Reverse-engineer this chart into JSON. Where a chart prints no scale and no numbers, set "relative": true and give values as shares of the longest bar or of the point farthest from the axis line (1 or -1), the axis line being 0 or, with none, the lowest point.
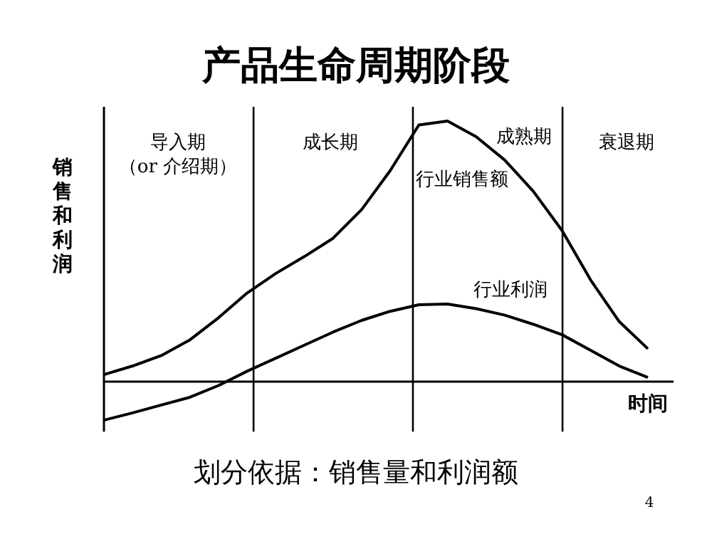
{
  "chart_data": {
    "type": "line",
    "title": "产品生命周期阶段",
    "ylabel": "销售和利润",
    "xlabel": "时间",
    "relative": true,
    "categories": [
      null,
      null,
      null,
      null,
      null,
      null,
      null,
      null,
      null,
      null,
      null,
      null,
      null,
      null,
      null,
      null,
      null,
      null,
      null,
      null
    ],
    "series": [
      {
        "name": "行业销售额",
        "color": "#000000",
        "values": [
          0.027,
          0.06,
          0.1,
          0.16,
          0.245,
          0.34,
          0.415,
          0.48,
          0.55,
          0.66,
          0.81,
          0.985,
          1,
          0.94,
          0.85,
          0.73,
          0.58,
          0.39,
          0.23,
          0.126
        ]
      },
      {
        "name": "行业利润",
        "color": "#000000",
        "values": [
          -0.148,
          -0.12,
          -0.09,
          -0.06,
          -0.015,
          0.04,
          0.09,
          0.14,
          0.19,
          0.235,
          0.27,
          0.295,
          0.298,
          0.28,
          0.255,
          0.22,
          0.18,
          0.12,
          0.06,
          0.016
        ]
      }
    ],
    "annotations": [
      "导入期",
      "（or 介绍期）",
      "成长期",
      "成熟期",
      "衰退期",
      "划分依据：销售量和利润额",
      "4"
    ]
  }
}
